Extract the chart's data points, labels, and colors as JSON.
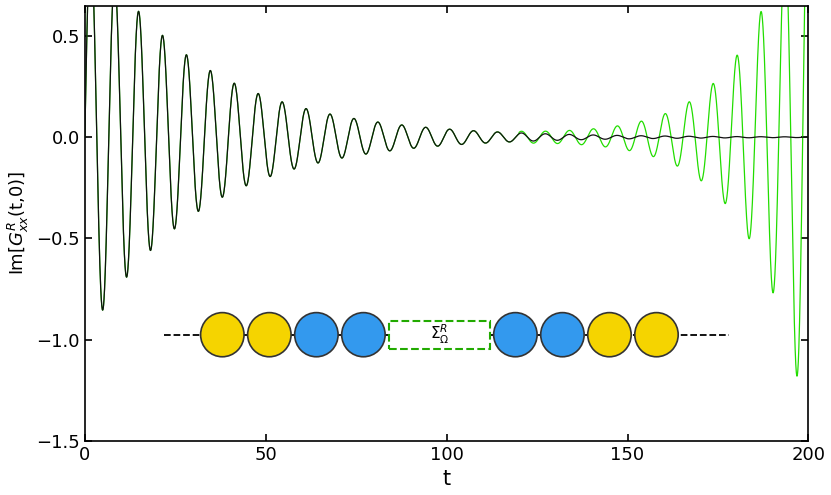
{
  "xlim": [
    0,
    200
  ],
  "ylim": [
    -1.5,
    0.65
  ],
  "xlabel": "t",
  "xticks": [
    0,
    50,
    100,
    150,
    200
  ],
  "yticks": [
    -1.5,
    -1.0,
    -0.5,
    0.0,
    0.5
  ],
  "green_color": "#22dd00",
  "black_color": "#111111",
  "bg_color": "#ffffff",
  "omega": 0.95,
  "decay_stable": 0.032,
  "decay_green": 0.032,
  "diverge_start": 120,
  "growth_rate": 0.065,
  "N_points": 8000,
  "t_max": 200,
  "diagram_y": -0.975,
  "sigma_box_color": "#22aa00",
  "yellow_color": "#f5d400",
  "blue_color": "#3399ee",
  "circle_edge_color": "#333333"
}
